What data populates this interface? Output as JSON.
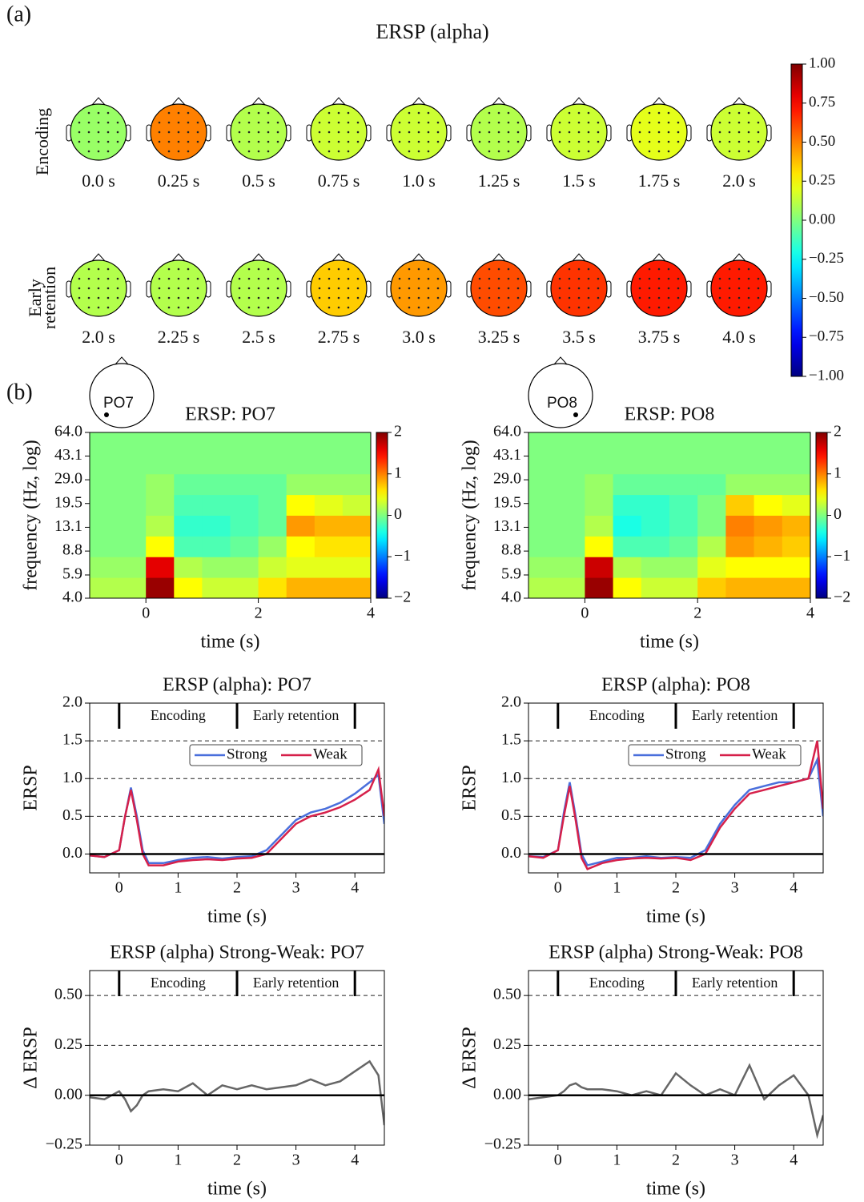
{
  "panel_labels": [
    "(a)",
    "(b)"
  ],
  "chart_data": [
    {
      "type": "topomap",
      "title": "ERSP (alpha)",
      "rows": [
        {
          "label": [
            "Encoding"
          ],
          "times": [
            "0.0 s",
            "0.25 s",
            "0.5 s",
            "0.75 s",
            "1.0 s",
            "1.25 s",
            "1.5 s",
            "1.75 s",
            "2.0 s"
          ],
          "values": [
            0.05,
            0.5,
            0.1,
            0.15,
            0.15,
            0.1,
            0.15,
            0.2,
            0.15
          ]
        },
        {
          "label": [
            "Early",
            "retention"
          ],
          "times": [
            "2.0 s",
            "2.25 s",
            "2.5 s",
            "2.75 s",
            "3.0 s",
            "3.25 s",
            "3.5 s",
            "3.75 s",
            "4.0 s"
          ],
          "values": [
            0.1,
            0.1,
            0.1,
            0.35,
            0.45,
            0.6,
            0.65,
            0.7,
            0.7
          ]
        }
      ],
      "clim": [
        -1,
        1
      ],
      "cticks": [
        {
          "value": 1,
          "label": "1.00"
        },
        {
          "value": 0.75,
          "label": "0.75"
        },
        {
          "value": 0.5,
          "label": "0.50"
        },
        {
          "value": 0.25,
          "label": "0.25"
        },
        {
          "value": 0,
          "label": "0.00"
        },
        {
          "value": -0.25,
          "label": "−0.25"
        },
        {
          "value": -0.5,
          "label": "−0.50"
        },
        {
          "value": -0.75,
          "label": "−0.75"
        },
        {
          "value": -1,
          "label": "−1.00"
        }
      ]
    },
    {
      "type": "heatmap",
      "title": "ERSP: PO7",
      "electrode": "PO7",
      "xlabel": "time (s)",
      "ylabel": "frequency (Hz, log)",
      "xlim": [
        -1,
        4
      ],
      "xticks": [
        0,
        2,
        4
      ],
      "ylim": [
        4,
        64
      ],
      "yscale": "log",
      "yticks": [
        {
          "value": 4,
          "label": "4.0"
        },
        {
          "value": 5.9,
          "label": "5.9"
        },
        {
          "value": 8.8,
          "label": "8.8"
        },
        {
          "value": 13.1,
          "label": "13.1"
        },
        {
          "value": 19.5,
          "label": "19.5"
        },
        {
          "value": 29,
          "label": "29.0"
        },
        {
          "value": 43.1,
          "label": "43.1"
        },
        {
          "value": 64,
          "label": "64.0"
        }
      ],
      "clim": [
        -2,
        2
      ],
      "cticks": [
        2,
        1,
        0,
        {
          "value": -1,
          "label": "−1"
        },
        {
          "value": -2,
          "label": "−2"
        }
      ],
      "x_bins": [
        -1,
        -0.5,
        0,
        0.5,
        1,
        1.5,
        2,
        2.5,
        3,
        3.5,
        4
      ],
      "y_bins": [
        4,
        5.66,
        8,
        11.31,
        16,
        22.63,
        32,
        45.25,
        64
      ],
      "z": [
        [
          0.2,
          0.2,
          1.9,
          0.5,
          0.3,
          0.3,
          0.6,
          0.8,
          0.8,
          0.8
        ],
        [
          0.1,
          0.1,
          1.6,
          0.2,
          0.1,
          0.1,
          0.3,
          0.4,
          0.4,
          0.4
        ],
        [
          0,
          0,
          0.5,
          -0.2,
          -0.2,
          -0.1,
          0.1,
          0.5,
          0.6,
          0.6
        ],
        [
          0,
          0,
          0.2,
          -0.3,
          -0.3,
          -0.2,
          -0.1,
          0.9,
          0.8,
          0.8
        ],
        [
          0,
          0,
          0.1,
          -0.2,
          -0.2,
          -0.2,
          -0.1,
          0.5,
          0.4,
          0.3
        ],
        [
          0,
          0,
          0.1,
          -0.1,
          -0.1,
          -0.1,
          -0.1,
          0.1,
          0.1,
          0.1
        ],
        [
          0,
          0,
          0,
          0,
          0,
          0,
          0,
          0,
          0,
          0
        ],
        [
          0,
          0,
          0,
          0,
          0,
          0,
          0,
          0,
          0,
          0
        ]
      ]
    },
    {
      "type": "heatmap",
      "title": "ERSP: PO8",
      "electrode": "PO8",
      "xlabel": "time (s)",
      "ylabel": "frequency (Hz, log)",
      "xlim": [
        -1,
        4
      ],
      "xticks": [
        0,
        2,
        4
      ],
      "ylim": [
        4,
        64
      ],
      "yscale": "log",
      "yticks": [
        {
          "value": 4,
          "label": "4.0"
        },
        {
          "value": 5.9,
          "label": "5.9"
        },
        {
          "value": 8.8,
          "label": "8.8"
        },
        {
          "value": 13.1,
          "label": "13.1"
        },
        {
          "value": 19.5,
          "label": "19.5"
        },
        {
          "value": 29,
          "label": "29.0"
        },
        {
          "value": 43.1,
          "label": "43.1"
        },
        {
          "value": 64,
          "label": "64.0"
        }
      ],
      "clim": [
        -2,
        2
      ],
      "cticks": [
        2,
        1,
        0,
        {
          "value": -1,
          "label": "−1"
        },
        {
          "value": -2,
          "label": "−2"
        }
      ],
      "x_bins": [
        -1,
        -0.5,
        0,
        0.5,
        1,
        1.5,
        2,
        2.5,
        3,
        3.5,
        4
      ],
      "y_bins": [
        4,
        5.66,
        8,
        11.31,
        16,
        22.63,
        32,
        45.25,
        64
      ],
      "z": [
        [
          0.2,
          0.2,
          1.9,
          0.5,
          0.3,
          0.3,
          0.7,
          0.8,
          0.8,
          0.8
        ],
        [
          0.1,
          0.1,
          1.7,
          0.2,
          0.1,
          0.1,
          0.4,
          0.5,
          0.5,
          0.5
        ],
        [
          0,
          0,
          0.5,
          -0.2,
          -0.2,
          -0.1,
          0.2,
          0.9,
          0.8,
          0.7
        ],
        [
          0,
          0,
          0.2,
          -0.4,
          -0.3,
          -0.2,
          0,
          1.0,
          0.9,
          0.8
        ],
        [
          0,
          0,
          0.1,
          -0.3,
          -0.3,
          -0.2,
          0,
          0.7,
          0.5,
          0.4
        ],
        [
          0,
          0,
          0.1,
          -0.1,
          -0.1,
          -0.1,
          -0.1,
          0.1,
          0.1,
          0.1
        ],
        [
          0,
          0,
          0,
          0,
          0,
          0,
          0,
          0,
          0,
          0
        ],
        [
          0,
          0,
          0,
          0,
          0,
          0,
          0,
          0,
          0,
          0
        ]
      ]
    },
    {
      "type": "line",
      "title": "ERSP (alpha): PO7",
      "xlabel": "time (s)",
      "ylabel": "ERSP",
      "xlim": [
        -0.5,
        4.5
      ],
      "xticks": [
        0,
        1,
        2,
        3,
        4
      ],
      "ylim": [
        -0.25,
        2.0
      ],
      "yticks": [
        {
          "value": 0,
          "label": "0.0"
        },
        {
          "value": 0.5,
          "label": "0.5"
        },
        {
          "value": 1,
          "label": "1.0"
        },
        {
          "value": 1.5,
          "label": "1.5"
        },
        {
          "value": 2,
          "label": "2.0"
        }
      ],
      "dashed_lines": [
        0.5,
        1,
        1.5
      ],
      "reference_line": 0,
      "legend": "upper right",
      "phases": [
        {
          "label": "Encoding",
          "start": 0,
          "end": 2
        },
        {
          "label": "Early retention",
          "start": 2,
          "end": 4
        }
      ],
      "x": [
        -0.5,
        -0.25,
        0,
        0.1,
        0.2,
        0.3,
        0.4,
        0.5,
        0.75,
        1,
        1.25,
        1.5,
        1.75,
        2,
        2.25,
        2.5,
        2.75,
        3,
        3.25,
        3.5,
        3.75,
        4,
        4.25,
        4.4,
        4.5
      ],
      "series": [
        {
          "name": "Strong",
          "color": "#4a6fdc",
          "values": [
            -0.02,
            -0.04,
            0.05,
            0.5,
            0.88,
            0.5,
            0.05,
            -0.12,
            -0.12,
            -0.08,
            -0.05,
            -0.04,
            -0.06,
            -0.04,
            -0.03,
            0.05,
            0.25,
            0.45,
            0.55,
            0.6,
            0.68,
            0.8,
            0.95,
            1.05,
            0.4
          ]
        },
        {
          "name": "Weak",
          "color": "#d6204a",
          "values": [
            -0.02,
            -0.04,
            0.05,
            0.5,
            0.85,
            0.45,
            0,
            -0.15,
            -0.15,
            -0.1,
            -0.08,
            -0.07,
            -0.08,
            -0.06,
            -0.05,
            0,
            0.2,
            0.4,
            0.5,
            0.55,
            0.62,
            0.72,
            0.85,
            1.12,
            0.5
          ]
        }
      ]
    },
    {
      "type": "line",
      "title": "ERSP (alpha): PO8",
      "xlabel": "time (s)",
      "ylabel": "ERSP",
      "xlim": [
        -0.5,
        4.5
      ],
      "xticks": [
        0,
        1,
        2,
        3,
        4
      ],
      "ylim": [
        -0.25,
        2.0
      ],
      "yticks": [
        {
          "value": 0,
          "label": "0.0"
        },
        {
          "value": 0.5,
          "label": "0.5"
        },
        {
          "value": 1,
          "label": "1.0"
        },
        {
          "value": 1.5,
          "label": "1.5"
        },
        {
          "value": 2,
          "label": "2.0"
        }
      ],
      "dashed_lines": [
        0.5,
        1,
        1.5
      ],
      "reference_line": 0,
      "legend": "upper right",
      "phases": [
        {
          "label": "Encoding",
          "start": 0,
          "end": 2
        },
        {
          "label": "Early retention",
          "start": 2,
          "end": 4
        }
      ],
      "x": [
        -0.5,
        -0.25,
        0,
        0.1,
        0.2,
        0.3,
        0.4,
        0.5,
        0.75,
        1,
        1.25,
        1.5,
        1.75,
        2,
        2.25,
        2.5,
        2.75,
        3,
        3.25,
        3.5,
        3.75,
        4,
        4.25,
        4.4,
        4.5
      ],
      "series": [
        {
          "name": "Strong",
          "color": "#4a6fdc",
          "values": [
            -0.03,
            -0.04,
            0.05,
            0.55,
            0.95,
            0.5,
            0,
            -0.15,
            -0.1,
            -0.05,
            -0.05,
            -0.03,
            -0.05,
            -0.04,
            -0.05,
            0.05,
            0.4,
            0.65,
            0.85,
            0.9,
            0.95,
            0.95,
            1.0,
            1.25,
            0.5
          ]
        },
        {
          "name": "Weak",
          "color": "#d6204a",
          "values": [
            -0.03,
            -0.05,
            0.05,
            0.5,
            0.9,
            0.45,
            -0.05,
            -0.2,
            -0.12,
            -0.08,
            -0.06,
            -0.05,
            -0.06,
            -0.05,
            -0.08,
            0,
            0.35,
            0.6,
            0.8,
            0.85,
            0.9,
            0.95,
            1.0,
            1.5,
            0.6
          ]
        }
      ]
    },
    {
      "type": "line",
      "title": "ERSP (alpha) Strong-Weak: PO7",
      "xlabel": "time (s)",
      "ylabel": "Δ ERSP",
      "xlim": [
        -0.5,
        4.5
      ],
      "xticks": [
        0,
        1,
        2,
        3,
        4
      ],
      "ylim": [
        -0.25,
        0.625
      ],
      "yticks": [
        {
          "value": -0.25,
          "label": "−0.25"
        },
        {
          "value": 0,
          "label": "0.00"
        },
        {
          "value": 0.25,
          "label": "0.25"
        },
        {
          "value": 0.5,
          "label": "0.50"
        }
      ],
      "dashed_lines": [
        0.25,
        0.5
      ],
      "reference_line": 0,
      "phases": [
        {
          "label": "Encoding",
          "start": 0,
          "end": 2
        },
        {
          "label": "Early retention",
          "start": 2,
          "end": 4
        }
      ],
      "x": [
        -0.5,
        -0.25,
        0,
        0.1,
        0.2,
        0.3,
        0.4,
        0.5,
        0.75,
        1,
        1.25,
        1.5,
        1.75,
        2,
        2.25,
        2.5,
        2.75,
        3,
        3.25,
        3.5,
        3.75,
        4,
        4.25,
        4.4,
        4.5
      ],
      "series": [
        {
          "color": "#666666",
          "values": [
            -0.01,
            -0.02,
            0.02,
            -0.02,
            -0.08,
            -0.05,
            0,
            0.02,
            0.03,
            0.02,
            0.06,
            0,
            0.05,
            0.03,
            0.05,
            0.03,
            0.04,
            0.05,
            0.08,
            0.05,
            0.07,
            0.12,
            0.17,
            0.1,
            -0.15
          ]
        }
      ]
    },
    {
      "type": "line",
      "title": "ERSP (alpha) Strong-Weak: PO8",
      "xlabel": "time (s)",
      "ylabel": "Δ ERSP",
      "xlim": [
        -0.5,
        4.5
      ],
      "xticks": [
        0,
        1,
        2,
        3,
        4
      ],
      "ylim": [
        -0.25,
        0.625
      ],
      "yticks": [
        {
          "value": -0.25,
          "label": "−0.25"
        },
        {
          "value": 0,
          "label": "0.00"
        },
        {
          "value": 0.25,
          "label": "0.25"
        },
        {
          "value": 0.5,
          "label": "0.50"
        }
      ],
      "dashed_lines": [
        0.25,
        0.5
      ],
      "reference_line": 0,
      "phases": [
        {
          "label": "Encoding",
          "start": 0,
          "end": 2
        },
        {
          "label": "Early retention",
          "start": 2,
          "end": 4
        }
      ],
      "x": [
        -0.5,
        -0.25,
        0,
        0.1,
        0.2,
        0.3,
        0.4,
        0.5,
        0.75,
        1,
        1.25,
        1.5,
        1.75,
        2,
        2.25,
        2.5,
        2.75,
        3,
        3.25,
        3.5,
        3.75,
        4,
        4.25,
        4.4,
        4.5
      ],
      "series": [
        {
          "color": "#666666",
          "values": [
            -0.02,
            -0.01,
            0,
            0.02,
            0.05,
            0.06,
            0.04,
            0.03,
            0.03,
            0.02,
            0,
            0.02,
            0,
            0.11,
            0.05,
            0,
            0.03,
            0,
            0.15,
            -0.02,
            0.05,
            0.1,
            0,
            -0.2,
            -0.1
          ]
        }
      ]
    }
  ]
}
